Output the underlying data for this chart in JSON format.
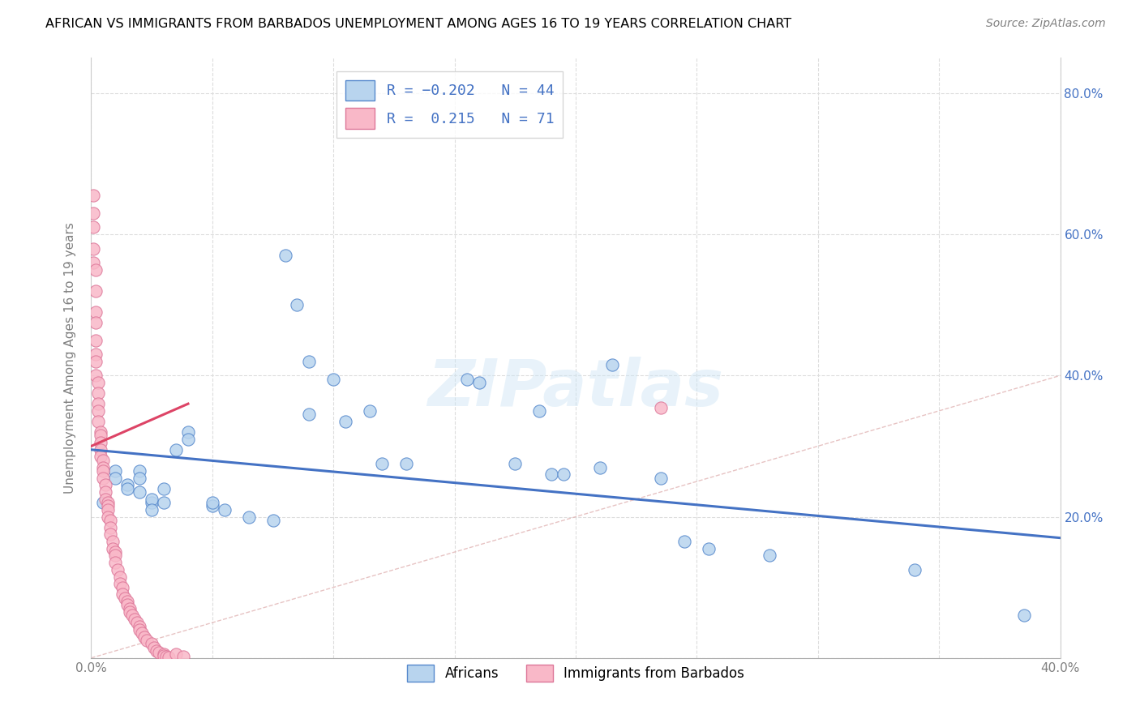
{
  "title": "AFRICAN VS IMMIGRANTS FROM BARBADOS UNEMPLOYMENT AMONG AGES 16 TO 19 YEARS CORRELATION CHART",
  "source": "Source: ZipAtlas.com",
  "ylabel": "Unemployment Among Ages 16 to 19 years",
  "xlim": [
    0.0,
    0.4
  ],
  "ylim": [
    0.0,
    0.85
  ],
  "xtick_left_label": "0.0%",
  "xtick_right_label": "40.0%",
  "yticks_right": [
    0.2,
    0.4,
    0.6,
    0.8
  ],
  "african_R": -0.202,
  "african_N": 44,
  "barbados_R": 0.215,
  "barbados_N": 71,
  "african_color": "#b8d4ee",
  "barbados_color": "#f9b8c8",
  "african_edge_color": "#5588cc",
  "barbados_edge_color": "#dd7799",
  "african_line_color": "#4472C4",
  "barbados_line_color": "#dd4466",
  "watermark": "ZIPatlas",
  "african_x": [
    0.005,
    0.01,
    0.01,
    0.015,
    0.015,
    0.02,
    0.02,
    0.02,
    0.025,
    0.025,
    0.025,
    0.03,
    0.03,
    0.035,
    0.04,
    0.04,
    0.05,
    0.05,
    0.055,
    0.065,
    0.075,
    0.08,
    0.085,
    0.09,
    0.1,
    0.105,
    0.115,
    0.13,
    0.155,
    0.16,
    0.175,
    0.185,
    0.19,
    0.195,
    0.21,
    0.215,
    0.235,
    0.245,
    0.255,
    0.28,
    0.34,
    0.385,
    0.12,
    0.09
  ],
  "african_y": [
    0.22,
    0.265,
    0.255,
    0.245,
    0.24,
    0.265,
    0.255,
    0.235,
    0.22,
    0.225,
    0.21,
    0.22,
    0.24,
    0.295,
    0.32,
    0.31,
    0.215,
    0.22,
    0.21,
    0.2,
    0.195,
    0.57,
    0.5,
    0.42,
    0.395,
    0.335,
    0.35,
    0.275,
    0.395,
    0.39,
    0.275,
    0.35,
    0.26,
    0.26,
    0.27,
    0.415,
    0.255,
    0.165,
    0.155,
    0.145,
    0.125,
    0.06,
    0.275,
    0.345
  ],
  "barbados_x": [
    0.001,
    0.001,
    0.001,
    0.001,
    0.001,
    0.002,
    0.002,
    0.002,
    0.002,
    0.002,
    0.002,
    0.002,
    0.002,
    0.003,
    0.003,
    0.003,
    0.003,
    0.003,
    0.004,
    0.004,
    0.004,
    0.004,
    0.004,
    0.005,
    0.005,
    0.005,
    0.005,
    0.006,
    0.006,
    0.006,
    0.007,
    0.007,
    0.007,
    0.007,
    0.008,
    0.008,
    0.008,
    0.009,
    0.009,
    0.01,
    0.01,
    0.01,
    0.011,
    0.012,
    0.012,
    0.013,
    0.013,
    0.014,
    0.015,
    0.015,
    0.016,
    0.016,
    0.017,
    0.018,
    0.019,
    0.02,
    0.02,
    0.021,
    0.022,
    0.023,
    0.025,
    0.026,
    0.027,
    0.028,
    0.03,
    0.03,
    0.031,
    0.032,
    0.035,
    0.038,
    0.235
  ],
  "barbados_y": [
    0.655,
    0.63,
    0.61,
    0.58,
    0.56,
    0.55,
    0.52,
    0.49,
    0.475,
    0.45,
    0.43,
    0.42,
    0.4,
    0.39,
    0.375,
    0.36,
    0.35,
    0.335,
    0.32,
    0.315,
    0.305,
    0.295,
    0.285,
    0.28,
    0.27,
    0.265,
    0.255,
    0.245,
    0.235,
    0.225,
    0.22,
    0.215,
    0.21,
    0.2,
    0.195,
    0.185,
    0.175,
    0.165,
    0.155,
    0.15,
    0.145,
    0.135,
    0.125,
    0.115,
    0.105,
    0.1,
    0.09,
    0.085,
    0.08,
    0.075,
    0.07,
    0.065,
    0.06,
    0.055,
    0.05,
    0.045,
    0.04,
    0.035,
    0.03,
    0.025,
    0.02,
    0.015,
    0.01,
    0.008,
    0.005,
    0.003,
    0.002,
    0.001,
    0.005,
    0.002,
    0.355
  ],
  "african_line_x": [
    0.0,
    0.4
  ],
  "african_line_y": [
    0.295,
    0.17
  ],
  "barbados_line_x": [
    0.0,
    0.04
  ],
  "barbados_line_y": [
    0.3,
    0.36
  ]
}
